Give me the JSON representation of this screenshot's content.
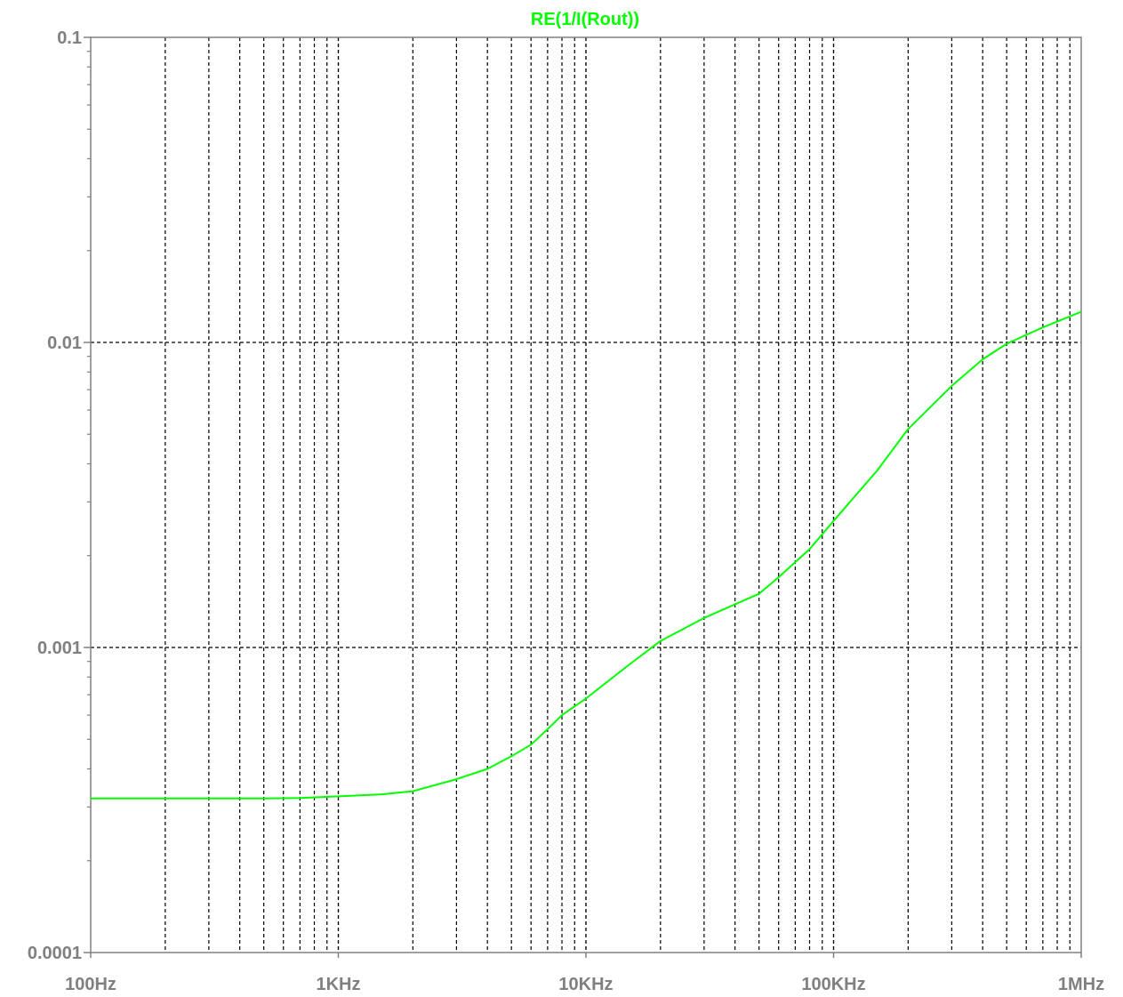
{
  "chart_data": {
    "type": "line",
    "title": "RE(1/I(Rout))",
    "x_scale": "log",
    "y_scale": "log",
    "xlim": [
      100,
      1000000
    ],
    "ylim": [
      0.0001,
      0.1
    ],
    "x_ticks": [
      {
        "value": 100,
        "label": "100Hz"
      },
      {
        "value": 1000,
        "label": "1KHz"
      },
      {
        "value": 10000,
        "label": "10KHz"
      },
      {
        "value": 100000,
        "label": "100KHz"
      },
      {
        "value": 1000000,
        "label": "1MHz"
      }
    ],
    "y_ticks": [
      {
        "value": 0.1,
        "label": "0.1"
      },
      {
        "value": 0.01,
        "label": "0.01"
      },
      {
        "value": 0.001,
        "label": "0.001"
      },
      {
        "value": 0.0001,
        "label": "0.0001"
      }
    ],
    "grid": true,
    "colors": {
      "trace": "#00ff00",
      "axis": "#808080",
      "grid": "#000000",
      "background": "#ffffff"
    },
    "series": [
      {
        "x": [
          100,
          200,
          300,
          500,
          700,
          1000,
          1500,
          2000,
          3000,
          4000,
          5000,
          6000,
          7000,
          8000,
          10000,
          15000,
          20000,
          30000,
          50000,
          60000,
          80000,
          100000,
          150000,
          200000,
          300000,
          400000,
          500000,
          700000,
          1000000
        ],
        "y": [
          0.00032,
          0.00032,
          0.00032,
          0.00032,
          0.000321,
          0.000325,
          0.00033,
          0.000338,
          0.00037,
          0.0004,
          0.00044,
          0.00048,
          0.00054,
          0.0006,
          0.00068,
          0.00088,
          0.00105,
          0.00125,
          0.0015,
          0.0017,
          0.0021,
          0.0026,
          0.0038,
          0.0052,
          0.0072,
          0.0088,
          0.0099,
          0.0112,
          0.0126
        ]
      }
    ]
  }
}
